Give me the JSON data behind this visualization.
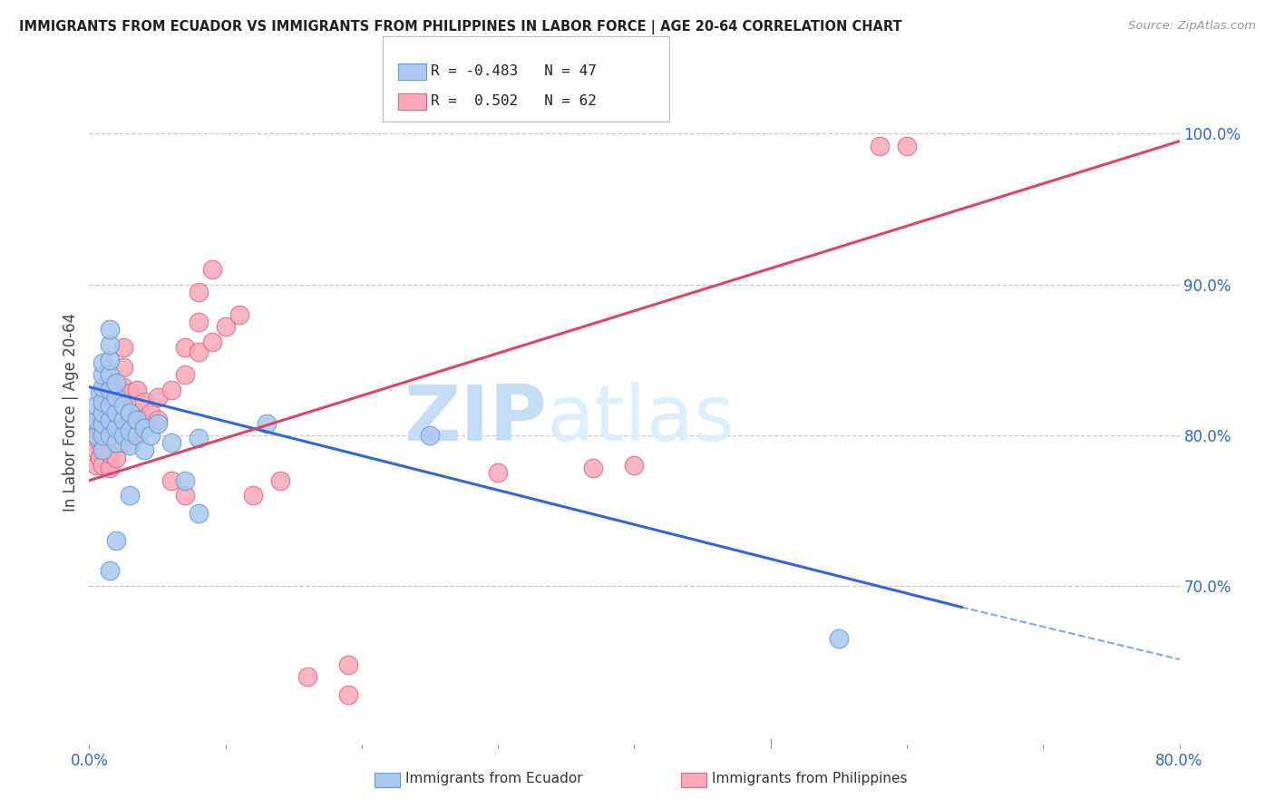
{
  "title": "IMMIGRANTS FROM ECUADOR VS IMMIGRANTS FROM PHILIPPINES IN LABOR FORCE | AGE 20-64 CORRELATION CHART",
  "source": "Source: ZipAtlas.com",
  "ylabel": "In Labor Force | Age 20-64",
  "xlim": [
    0.0,
    0.8
  ],
  "ylim": [
    0.595,
    1.035
  ],
  "yticks": [
    0.7,
    0.8,
    0.9,
    1.0
  ],
  "ytick_labels": [
    "70.0%",
    "80.0%",
    "90.0%",
    "100.0%"
  ],
  "ecuador_color": "#aac8f0",
  "ecuador_edge": "#6699cc",
  "philippines_color": "#f8a8b8",
  "philippines_edge": "#dd6688",
  "ecuador_line_color": "#3366dd",
  "philippines_line_color": "#dd4466",
  "watermark_zip": "ZIP",
  "watermark_atlas": "atlas",
  "legend_R_ecuador": "R = -0.483",
  "legend_N_ecuador": "N = 47",
  "legend_R_philippines": "R =  0.502",
  "legend_N_philippines": "N = 62",
  "ecuador_line": [
    [
      0.0,
      0.832
    ],
    [
      0.64,
      0.686
    ]
  ],
  "ecuador_line_dashed": [
    [
      0.64,
      0.686
    ],
    [
      0.82,
      0.647
    ]
  ],
  "philippines_line": [
    [
      0.0,
      0.77
    ],
    [
      0.8,
      0.995
    ]
  ],
  "ecuador_scatter": [
    [
      0.005,
      0.8
    ],
    [
      0.005,
      0.81
    ],
    [
      0.005,
      0.82
    ],
    [
      0.008,
      0.828
    ],
    [
      0.01,
      0.79
    ],
    [
      0.01,
      0.8
    ],
    [
      0.01,
      0.808
    ],
    [
      0.01,
      0.815
    ],
    [
      0.01,
      0.822
    ],
    [
      0.01,
      0.832
    ],
    [
      0.01,
      0.84
    ],
    [
      0.01,
      0.848
    ],
    [
      0.015,
      0.8
    ],
    [
      0.015,
      0.81
    ],
    [
      0.015,
      0.82
    ],
    [
      0.015,
      0.83
    ],
    [
      0.015,
      0.84
    ],
    [
      0.015,
      0.85
    ],
    [
      0.015,
      0.86
    ],
    [
      0.015,
      0.87
    ],
    [
      0.02,
      0.795
    ],
    [
      0.02,
      0.805
    ],
    [
      0.02,
      0.815
    ],
    [
      0.02,
      0.825
    ],
    [
      0.02,
      0.835
    ],
    [
      0.025,
      0.8
    ],
    [
      0.025,
      0.81
    ],
    [
      0.025,
      0.82
    ],
    [
      0.03,
      0.793
    ],
    [
      0.03,
      0.803
    ],
    [
      0.03,
      0.815
    ],
    [
      0.03,
      0.76
    ],
    [
      0.035,
      0.8
    ],
    [
      0.035,
      0.81
    ],
    [
      0.04,
      0.79
    ],
    [
      0.04,
      0.805
    ],
    [
      0.045,
      0.8
    ],
    [
      0.05,
      0.808
    ],
    [
      0.06,
      0.795
    ],
    [
      0.07,
      0.77
    ],
    [
      0.08,
      0.798
    ],
    [
      0.015,
      0.71
    ],
    [
      0.02,
      0.73
    ],
    [
      0.13,
      0.808
    ],
    [
      0.25,
      0.8
    ],
    [
      0.55,
      0.665
    ],
    [
      0.08,
      0.748
    ]
  ],
  "philippines_scatter": [
    [
      0.005,
      0.78
    ],
    [
      0.005,
      0.79
    ],
    [
      0.005,
      0.8
    ],
    [
      0.005,
      0.808
    ],
    [
      0.008,
      0.785
    ],
    [
      0.008,
      0.795
    ],
    [
      0.008,
      0.805
    ],
    [
      0.01,
      0.78
    ],
    [
      0.01,
      0.792
    ],
    [
      0.01,
      0.803
    ],
    [
      0.01,
      0.812
    ],
    [
      0.01,
      0.82
    ],
    [
      0.015,
      0.778
    ],
    [
      0.015,
      0.788
    ],
    [
      0.015,
      0.8
    ],
    [
      0.015,
      0.81
    ],
    [
      0.015,
      0.82
    ],
    [
      0.015,
      0.832
    ],
    [
      0.02,
      0.785
    ],
    [
      0.02,
      0.795
    ],
    [
      0.02,
      0.807
    ],
    [
      0.02,
      0.818
    ],
    [
      0.02,
      0.828
    ],
    [
      0.025,
      0.795
    ],
    [
      0.025,
      0.808
    ],
    [
      0.025,
      0.82
    ],
    [
      0.025,
      0.832
    ],
    [
      0.025,
      0.845
    ],
    [
      0.025,
      0.858
    ],
    [
      0.03,
      0.8
    ],
    [
      0.03,
      0.813
    ],
    [
      0.03,
      0.828
    ],
    [
      0.035,
      0.8
    ],
    [
      0.035,
      0.815
    ],
    [
      0.035,
      0.83
    ],
    [
      0.04,
      0.808
    ],
    [
      0.04,
      0.822
    ],
    [
      0.045,
      0.815
    ],
    [
      0.05,
      0.81
    ],
    [
      0.05,
      0.825
    ],
    [
      0.06,
      0.83
    ],
    [
      0.07,
      0.84
    ],
    [
      0.07,
      0.858
    ],
    [
      0.08,
      0.855
    ],
    [
      0.08,
      0.875
    ],
    [
      0.09,
      0.862
    ],
    [
      0.1,
      0.872
    ],
    [
      0.11,
      0.88
    ],
    [
      0.12,
      0.76
    ],
    [
      0.14,
      0.77
    ],
    [
      0.08,
      0.895
    ],
    [
      0.09,
      0.91
    ],
    [
      0.06,
      0.77
    ],
    [
      0.07,
      0.76
    ],
    [
      0.16,
      0.64
    ],
    [
      0.19,
      0.628
    ],
    [
      0.19,
      0.648
    ],
    [
      0.37,
      0.778
    ],
    [
      0.4,
      0.78
    ],
    [
      0.3,
      0.775
    ],
    [
      0.58,
      0.992
    ],
    [
      0.6,
      0.992
    ]
  ]
}
